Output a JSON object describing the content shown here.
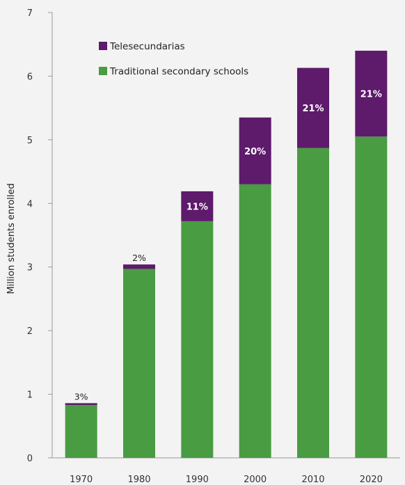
{
  "chart_data": {
    "type": "bar",
    "stacked": true,
    "categories": [
      "1970",
      "1980",
      "1990",
      "2000",
      "2010",
      "2020"
    ],
    "series": [
      {
        "name": "Traditional secondary schools",
        "color": "#4a9c42",
        "values": [
          0.83,
          2.97,
          3.72,
          4.3,
          4.87,
          5.05
        ]
      },
      {
        "name": "Telesecundarias",
        "color": "#5e1a6b",
        "values": [
          0.03,
          0.07,
          0.47,
          1.05,
          1.26,
          1.35
        ]
      }
    ],
    "share_labels": [
      "3%",
      "2%",
      "11%",
      "20%",
      "21%",
      "21%"
    ],
    "legend_order": [
      "Telesecundarias",
      "Traditional secondary schools"
    ],
    "ylabel": "Million students enrolled",
    "xlabel": "",
    "ylim": [
      0,
      7
    ],
    "yticks": [
      0,
      1,
      2,
      3,
      4,
      5,
      6,
      7
    ],
    "grid": false,
    "legend_position": "top-left"
  }
}
